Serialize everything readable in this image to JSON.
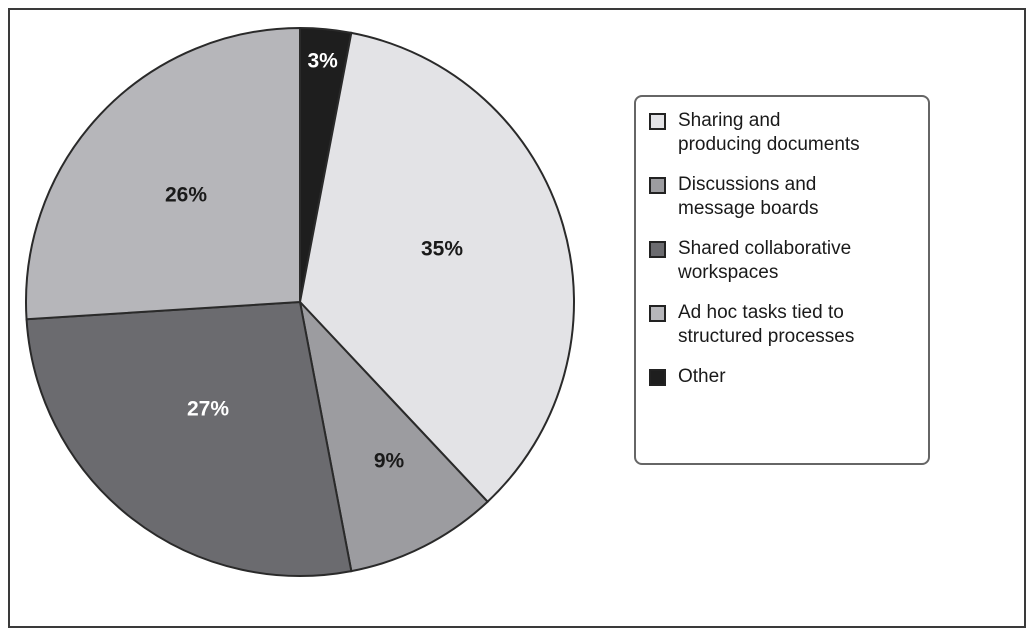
{
  "chart_data": {
    "type": "pie",
    "title": "",
    "start_angle_deg": 0,
    "direction": "clockwise",
    "legend_position": "right",
    "slices": [
      {
        "label": "Other",
        "value": 3,
        "value_label": "3%",
        "color": "#1e1e1e",
        "label_color": "#ffffff"
      },
      {
        "label": "Sharing and producing documents",
        "value": 35,
        "value_label": "35%",
        "color": "#e3e3e6",
        "label_color": "#1a1a1a"
      },
      {
        "label": "Discussions and message boards",
        "value": 9,
        "value_label": "9%",
        "color": "#9c9ca0",
        "label_color": "#1a1a1a"
      },
      {
        "label": "Shared collaborative workspaces",
        "value": 27,
        "value_label": "27%",
        "color": "#6b6b6f",
        "label_color": "#ffffff"
      },
      {
        "label": "Ad hoc tasks tied to structured processes",
        "value": 26,
        "value_label": "26%",
        "color": "#b6b6ba",
        "label_color": "#1a1a1a"
      }
    ],
    "legend": [
      {
        "text": "Sharing and\nproducing documents",
        "color": "#e3e3e6"
      },
      {
        "text": "Discussions and\nmessage boards",
        "color": "#9c9ca0"
      },
      {
        "text": "Shared collaborative\nworkspaces",
        "color": "#6b6b6f"
      },
      {
        "text": "Ad hoc tasks tied to\nstructured processes",
        "color": "#b6b6ba"
      },
      {
        "text": "Other",
        "color": "#1e1e1e"
      }
    ]
  }
}
